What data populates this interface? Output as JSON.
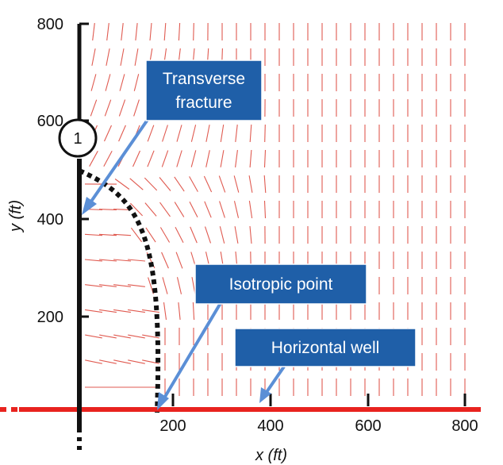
{
  "axes": {
    "x_title": "x (ft)",
    "y_title": "y (ft)",
    "x_ticks": [
      "200",
      "400",
      "600",
      "800"
    ],
    "y_ticks": [
      "800",
      "600",
      "400",
      "200"
    ]
  },
  "fracture_marker": "1",
  "callouts": {
    "fracture": [
      "Transverse",
      "fracture"
    ],
    "isotropic": "Isotropic point",
    "well": "Horizontal well"
  },
  "colors": {
    "stress_lines": "#e05a50",
    "well": "#e8231f",
    "callout_fill": "#1f5fa8",
    "arrow": "#5b8fd6"
  }
}
